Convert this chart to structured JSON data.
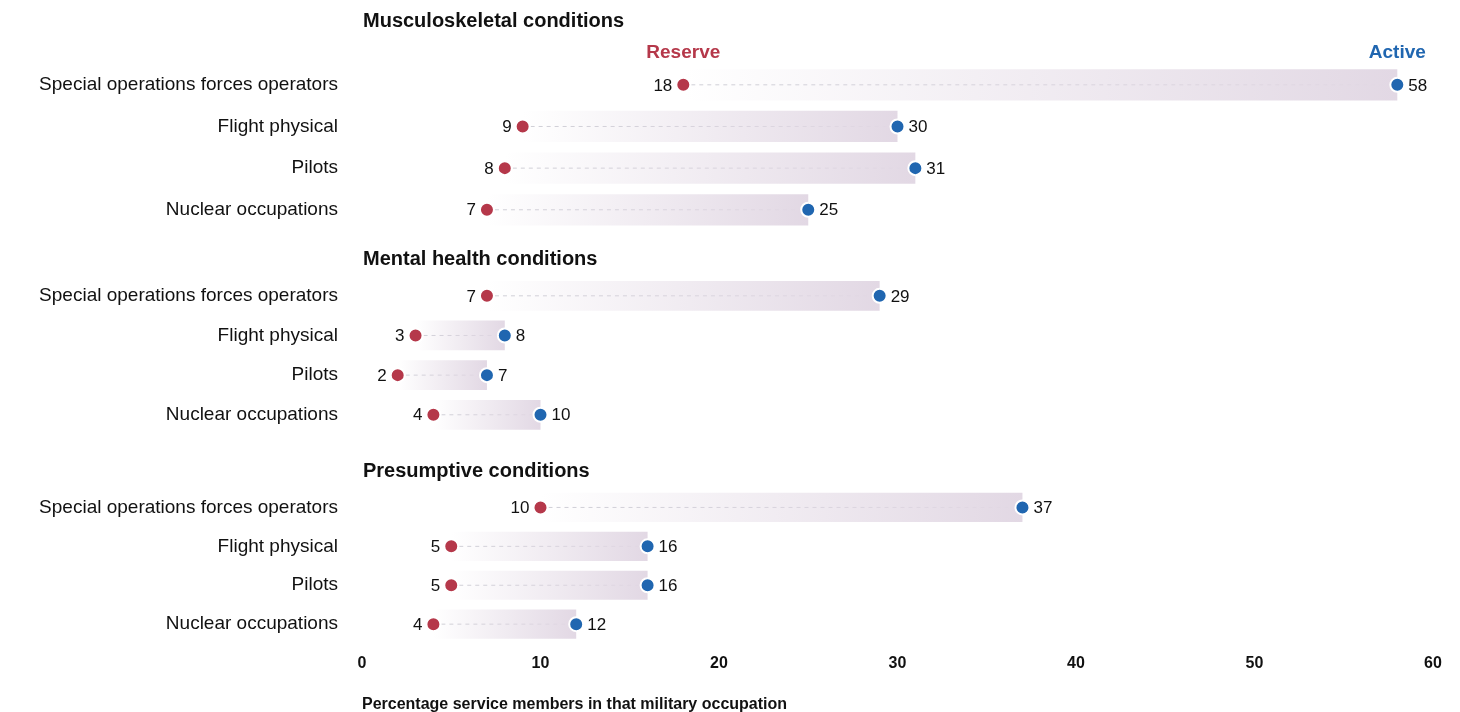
{
  "chart_data": [
    {
      "type": "scatter",
      "orientation": "horizontal",
      "title": "Musculoskeletal conditions",
      "categories": [
        "Special operations forces operators",
        "Flight physical",
        "Pilots",
        "Nuclear occupations"
      ],
      "series": [
        {
          "type": "bar",
          "color": "#e2d8e4",
          "base": [
            18,
            9,
            8,
            7
          ],
          "values": [
            40,
            21,
            23,
            18
          ]
        },
        {
          "name": "Reserve",
          "color": "#b5384a",
          "values": [
            18,
            9,
            8,
            7
          ],
          "value_labels": [
            "18",
            "9",
            "8",
            "7"
          ]
        },
        {
          "name": "Active",
          "color": "#2066b0",
          "values": [
            58,
            30,
            31,
            25
          ],
          "value_labels": [
            "58",
            "30",
            "31",
            "25"
          ]
        }
      ],
      "xlim": [
        0,
        60
      ],
      "xticks": [
        0,
        10,
        20,
        30,
        40,
        50,
        60
      ],
      "tick_labels": "y"
    },
    {
      "type": "scatter",
      "orientation": "horizontal",
      "title": "Mental health conditions",
      "categories": [
        "Special operations forces operators",
        "Flight physical",
        "Pilots",
        "Nuclear occupations"
      ],
      "series": [
        {
          "type": "bar",
          "color": "#e2d8e4",
          "base": [
            7,
            3,
            2,
            4
          ],
          "values": [
            22,
            5,
            5,
            6
          ]
        },
        {
          "color": "#b5384a",
          "values": [
            7,
            3,
            2,
            4
          ],
          "value_labels": [
            "7",
            "3",
            "2",
            "4"
          ]
        },
        {
          "color": "#2066b0",
          "values": [
            29,
            8,
            7,
            10
          ],
          "value_labels": [
            "29",
            "8",
            "7",
            "10"
          ]
        }
      ],
      "xlim": [
        0,
        60
      ],
      "xticks": [
        0,
        10,
        20,
        30,
        40,
        50,
        60
      ],
      "tick_labels": "y"
    },
    {
      "type": "scatter",
      "orientation": "horizontal",
      "title": "Presumptive conditions",
      "xlabel": "Percentage service members in that military occupation",
      "categories": [
        "Special operations forces operators",
        "Flight physical",
        "Pilots",
        "Nuclear occupations"
      ],
      "series": [
        {
          "type": "bar",
          "color": "#e2d8e4",
          "base": [
            10,
            5,
            5,
            4
          ],
          "values": [
            27,
            11,
            11,
            8
          ]
        },
        {
          "color": "#b5384a",
          "values": [
            10,
            5,
            5,
            4
          ],
          "value_labels": [
            "10",
            "5",
            "5",
            "4"
          ]
        },
        {
          "color": "#2066b0",
          "values": [
            37,
            16,
            16,
            12
          ],
          "value_labels": [
            "37",
            "16",
            "16",
            "12"
          ]
        }
      ],
      "xlim": [
        0,
        60
      ],
      "xticks": [
        0,
        10,
        20,
        30,
        40,
        50,
        60
      ]
    }
  ]
}
